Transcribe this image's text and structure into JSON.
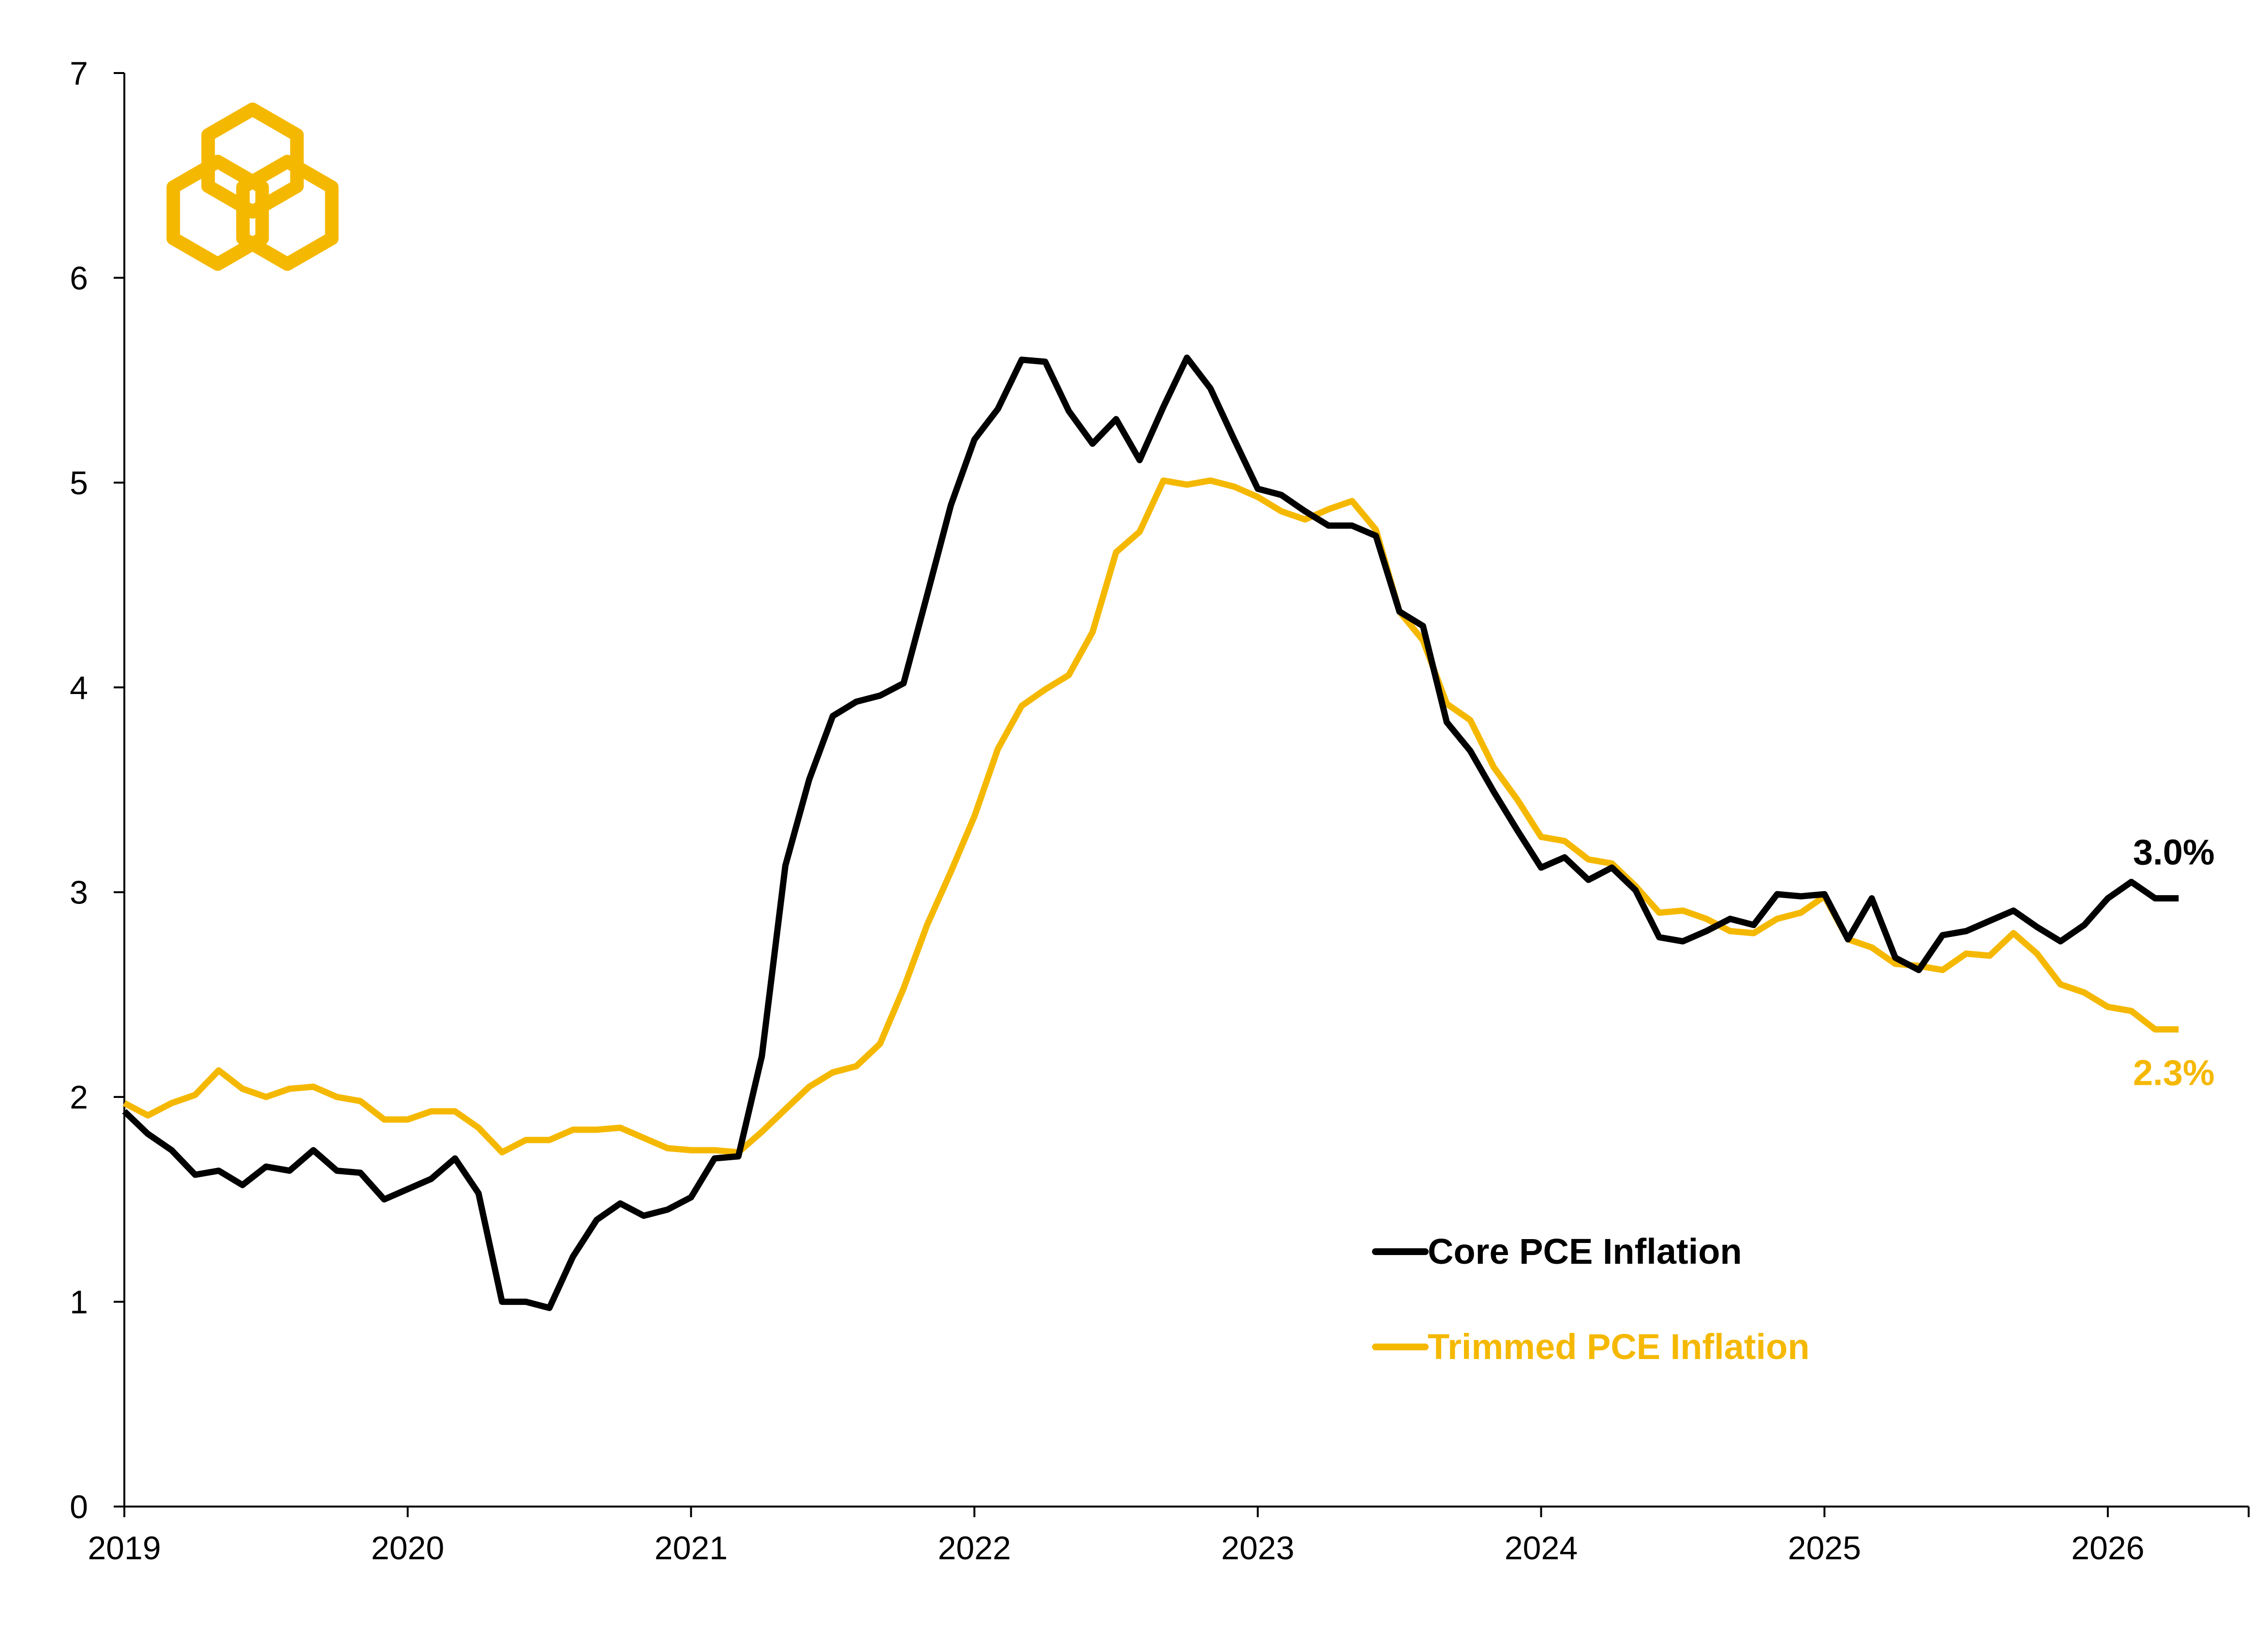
{
  "colors": {
    "core": "#000000",
    "trimmed": "#F5B800",
    "logo": "#F5B800",
    "axis": "#000000"
  },
  "logo": {
    "icon": "interlocked-hexagons-icon"
  },
  "chart_data": {
    "type": "line",
    "title": "",
    "xlabel": "",
    "ylabel": "",
    "xlim": [
      2019.0,
      2026.5
    ],
    "ylim": [
      0,
      7
    ],
    "y_ticks": [
      "0",
      "1",
      "2",
      "3",
      "4",
      "5",
      "6",
      "7"
    ],
    "x_ticks": [
      "2019",
      "2020",
      "2021",
      "2022",
      "2023",
      "2024",
      "2025",
      "2026"
    ],
    "grid": false,
    "legend_position": "center-right",
    "series": [
      {
        "name": "Core PCE Inflation",
        "key": "core",
        "end_label": "3.0%",
        "x": [
          2019.0,
          2019.083,
          2019.167,
          2019.25,
          2019.333,
          2019.417,
          2019.5,
          2019.583,
          2019.667,
          2019.75,
          2019.833,
          2019.917,
          2020.0,
          2020.083,
          2020.167,
          2020.25,
          2020.333,
          2020.417,
          2020.5,
          2020.583,
          2020.667,
          2020.75,
          2020.833,
          2020.917,
          2021.0,
          2021.083,
          2021.167,
          2021.25,
          2021.333,
          2021.417,
          2021.5,
          2021.583,
          2021.667,
          2021.75,
          2021.833,
          2021.917,
          2022.0,
          2022.083,
          2022.167,
          2022.25,
          2022.333,
          2022.417,
          2022.5,
          2022.583,
          2022.667,
          2022.75,
          2022.833,
          2022.917,
          2023.0,
          2023.083,
          2023.167,
          2023.25,
          2023.333,
          2023.417,
          2023.5,
          2023.583,
          2023.667,
          2023.75,
          2023.833,
          2023.917,
          2024.0,
          2024.083,
          2024.167,
          2024.25,
          2024.333,
          2024.417,
          2024.5,
          2024.583,
          2024.667,
          2024.75,
          2024.833,
          2024.917,
          2025.0,
          2025.083,
          2025.167,
          2025.25,
          2025.333,
          2025.417,
          2025.5,
          2025.583,
          2025.667,
          2025.75,
          2025.833,
          2025.917,
          2026.0,
          2026.083,
          2026.167,
          2026.25
        ],
        "values": [
          1.93,
          1.82,
          1.74,
          1.62,
          1.64,
          1.57,
          1.66,
          1.64,
          1.74,
          1.64,
          1.63,
          1.5,
          1.55,
          1.6,
          1.7,
          1.53,
          1.0,
          1.0,
          0.97,
          1.22,
          1.4,
          1.48,
          1.42,
          1.45,
          1.51,
          1.7,
          1.71,
          2.2,
          3.13,
          3.55,
          3.86,
          3.93,
          3.96,
          4.02,
          4.45,
          4.89,
          5.21,
          5.36,
          5.6,
          5.59,
          5.35,
          5.19,
          5.31,
          5.11,
          5.37,
          5.61,
          5.46,
          5.21,
          4.97,
          4.94,
          4.86,
          4.79,
          4.79,
          4.74,
          4.37,
          4.3,
          3.83,
          3.69,
          3.49,
          3.3,
          3.12,
          3.17,
          3.06,
          3.12,
          3.01,
          2.78,
          2.76,
          2.81,
          2.87,
          2.84,
          2.99,
          2.98,
          2.99,
          2.77,
          2.97,
          2.68,
          2.62,
          2.79,
          2.81,
          2.86,
          2.91,
          2.83,
          2.76,
          2.84,
          2.97,
          3.05,
          2.97,
          2.97
        ]
      },
      {
        "name": "Trimmed PCE Inflation",
        "key": "trimmed",
        "end_label": "2.3%",
        "x": [
          2019.0,
          2019.083,
          2019.167,
          2019.25,
          2019.333,
          2019.417,
          2019.5,
          2019.583,
          2019.667,
          2019.75,
          2019.833,
          2019.917,
          2020.0,
          2020.083,
          2020.167,
          2020.25,
          2020.333,
          2020.417,
          2020.5,
          2020.583,
          2020.667,
          2020.75,
          2020.833,
          2020.917,
          2021.0,
          2021.083,
          2021.167,
          2021.25,
          2021.333,
          2021.417,
          2021.5,
          2021.583,
          2021.667,
          2021.75,
          2021.833,
          2021.917,
          2022.0,
          2022.083,
          2022.167,
          2022.25,
          2022.333,
          2022.417,
          2022.5,
          2022.583,
          2022.667,
          2022.75,
          2022.833,
          2022.917,
          2023.0,
          2023.083,
          2023.167,
          2023.25,
          2023.333,
          2023.417,
          2023.5,
          2023.583,
          2023.667,
          2023.75,
          2023.833,
          2023.917,
          2024.0,
          2024.083,
          2024.167,
          2024.25,
          2024.333,
          2024.417,
          2024.5,
          2024.583,
          2024.667,
          2024.75,
          2024.833,
          2024.917,
          2025.0,
          2025.083,
          2025.167,
          2025.25,
          2025.333,
          2025.417,
          2025.5,
          2025.583,
          2025.667,
          2025.75,
          2025.833,
          2025.917,
          2026.0,
          2026.083,
          2026.167,
          2026.25
        ],
        "values": [
          1.97,
          1.91,
          1.97,
          2.01,
          2.13,
          2.04,
          2.0,
          2.04,
          2.05,
          2.0,
          1.98,
          1.89,
          1.89,
          1.93,
          1.93,
          1.85,
          1.73,
          1.79,
          1.79,
          1.84,
          1.84,
          1.85,
          1.8,
          1.75,
          1.74,
          1.74,
          1.73,
          1.83,
          1.94,
          2.05,
          2.12,
          2.15,
          2.26,
          2.53,
          2.84,
          3.1,
          3.37,
          3.7,
          3.91,
          3.99,
          4.06,
          4.27,
          4.66,
          4.76,
          5.01,
          4.99,
          5.01,
          4.98,
          4.93,
          4.86,
          4.82,
          4.87,
          4.91,
          4.77,
          4.37,
          4.23,
          3.92,
          3.84,
          3.61,
          3.45,
          3.27,
          3.25,
          3.16,
          3.14,
          3.03,
          2.9,
          2.91,
          2.87,
          2.81,
          2.8,
          2.87,
          2.9,
          2.98,
          2.77,
          2.73,
          2.65,
          2.64,
          2.62,
          2.7,
          2.69,
          2.8,
          2.7,
          2.55,
          2.51,
          2.44,
          2.42,
          2.33,
          2.33
        ]
      }
    ]
  }
}
